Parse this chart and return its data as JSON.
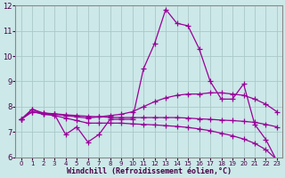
{
  "x": [
    0,
    1,
    2,
    3,
    4,
    5,
    6,
    7,
    8,
    9,
    10,
    11,
    12,
    13,
    14,
    15,
    16,
    17,
    18,
    19,
    20,
    21,
    22,
    23
  ],
  "line1": [
    7.5,
    7.9,
    7.7,
    7.7,
    6.9,
    7.2,
    6.6,
    6.9,
    7.5,
    7.5,
    7.5,
    9.5,
    10.5,
    11.85,
    11.3,
    11.2,
    10.3,
    9.0,
    8.3,
    8.3,
    8.9,
    7.3,
    6.7,
    5.85
  ],
  "line2": [
    7.5,
    7.9,
    7.75,
    7.7,
    7.65,
    7.6,
    7.55,
    7.6,
    7.65,
    7.7,
    7.8,
    8.0,
    8.2,
    8.35,
    8.45,
    8.5,
    8.5,
    8.55,
    8.55,
    8.5,
    8.45,
    8.3,
    8.1,
    7.8
  ],
  "line3": [
    7.5,
    7.8,
    7.75,
    7.72,
    7.68,
    7.65,
    7.62,
    7.6,
    7.58,
    7.57,
    7.57,
    7.57,
    7.57,
    7.57,
    7.57,
    7.55,
    7.52,
    7.5,
    7.47,
    7.45,
    7.42,
    7.38,
    7.3,
    7.2
  ],
  "line4": [
    7.5,
    7.8,
    7.7,
    7.65,
    7.55,
    7.45,
    7.35,
    7.35,
    7.35,
    7.35,
    7.32,
    7.3,
    7.28,
    7.25,
    7.22,
    7.18,
    7.12,
    7.05,
    6.95,
    6.85,
    6.72,
    6.55,
    6.3,
    5.9
  ],
  "color": "#990099",
  "bg_color": "#cce8e8",
  "grid_color": "#aac8c8",
  "xlabel": "Windchill (Refroidissement éolien,°C)",
  "xlim": [
    0,
    23
  ],
  "ylim": [
    6,
    12
  ],
  "yticks": [
    6,
    7,
    8,
    9,
    10,
    11,
    12
  ],
  "xticks": [
    0,
    1,
    2,
    3,
    4,
    5,
    6,
    7,
    8,
    9,
    10,
    11,
    12,
    13,
    14,
    15,
    16,
    17,
    18,
    19,
    20,
    21,
    22,
    23
  ],
  "marker": "+",
  "markersize": 4,
  "linewidth": 0.9
}
